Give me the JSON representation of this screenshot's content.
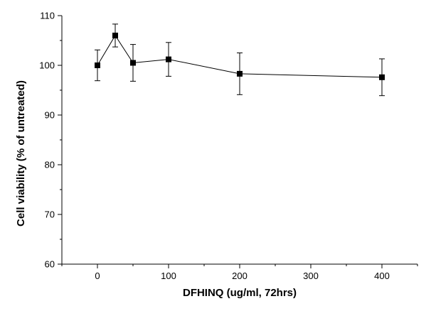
{
  "chart_data": {
    "type": "line",
    "title": "",
    "xlabel": "DFHINQ (ug/ml, 72hrs)",
    "ylabel": "Cell viability (% of untreated)",
    "xlim": [
      -50,
      450
    ],
    "ylim": [
      60,
      110
    ],
    "xticks": [
      0,
      100,
      200,
      300,
      400
    ],
    "yticks": [
      60,
      70,
      80,
      90,
      100,
      110
    ],
    "grid": false,
    "legend": "none",
    "marker": "square",
    "color": "#000000",
    "series": [
      {
        "x": [
          0,
          25,
          50,
          100,
          200,
          400
        ],
        "y": [
          100.0,
          106.0,
          100.5,
          101.2,
          98.3,
          97.6
        ],
        "error": [
          3.1,
          2.3,
          3.7,
          3.4,
          4.2,
          3.7
        ]
      }
    ]
  }
}
